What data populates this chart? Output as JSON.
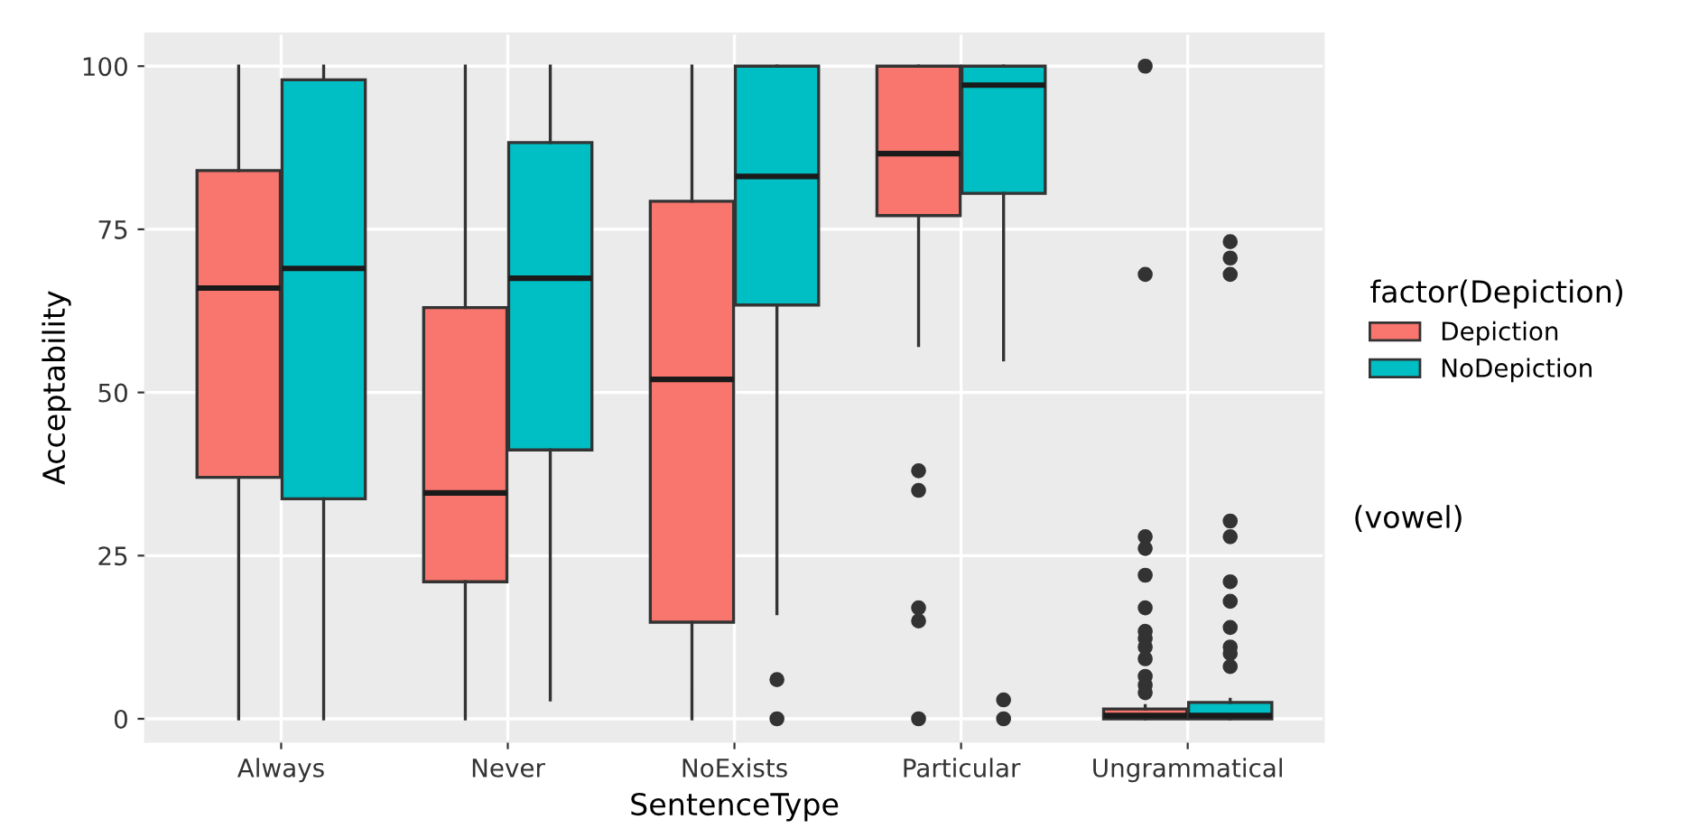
{
  "chart_data": {
    "type": "box",
    "xlabel": "SentenceType",
    "ylabel": "Acceptability",
    "legend_title": "factor(Depiction)",
    "legend": "right",
    "categories": [
      "Always",
      "Never",
      "NoExists",
      "Particular",
      "Ungrammatical"
    ],
    "ylim": [
      -3.5,
      105
    ],
    "yticks": [
      0,
      25,
      50,
      75,
      100
    ],
    "grid": true,
    "annotations": [
      "(vowel)"
    ],
    "series": [
      {
        "name": "Depiction",
        "color": "#f8766d",
        "boxes": [
          {
            "low": 0,
            "q1": 37,
            "median": 66,
            "q3": 84,
            "high": 100
          },
          {
            "low": 0,
            "q1": 21,
            "median": 34.6,
            "q3": 63,
            "high": 100
          },
          {
            "low": 0,
            "q1": 14.8,
            "median": 52,
            "q3": 79.3,
            "high": 100
          },
          {
            "low": 57.2,
            "q1": 77.1,
            "median": 86.6,
            "q3": 100,
            "high": 100,
            "outliers": [
              38,
              35,
              17,
              15,
              0
            ]
          },
          {
            "low": 0,
            "q1": 0,
            "median": 0.5,
            "q3": 1.5,
            "high": 2,
            "outliers": [
              100,
              68.1,
              27.9,
              26.1,
              22,
              17,
              13.4,
              12.3,
              11,
              9.2,
              6.5,
              5.2,
              4
            ]
          }
        ]
      },
      {
        "name": "NoDepiction",
        "color": "#00bfc4",
        "boxes": [
          {
            "low": 0,
            "q1": 33.7,
            "median": 69,
            "q3": 97.9,
            "high": 100
          },
          {
            "low": 2.9,
            "q1": 41.2,
            "median": 67.5,
            "q3": 88.3,
            "high": 100
          },
          {
            "low": 16.1,
            "q1": 63.4,
            "median": 83.1,
            "q3": 100,
            "high": 100,
            "outliers": [
              6,
              0
            ]
          },
          {
            "low": 55,
            "q1": 80.5,
            "median": 97.1,
            "q3": 100,
            "high": 100,
            "outliers": [
              2.9,
              0
            ]
          },
          {
            "low": 0,
            "q1": 0,
            "median": 0.5,
            "q3": 2.5,
            "high": 3,
            "outliers": [
              73.1,
              70.6,
              68.1,
              30.3,
              27.9,
              21,
              18,
              14,
              11,
              10,
              8
            ]
          }
        ]
      }
    ]
  }
}
